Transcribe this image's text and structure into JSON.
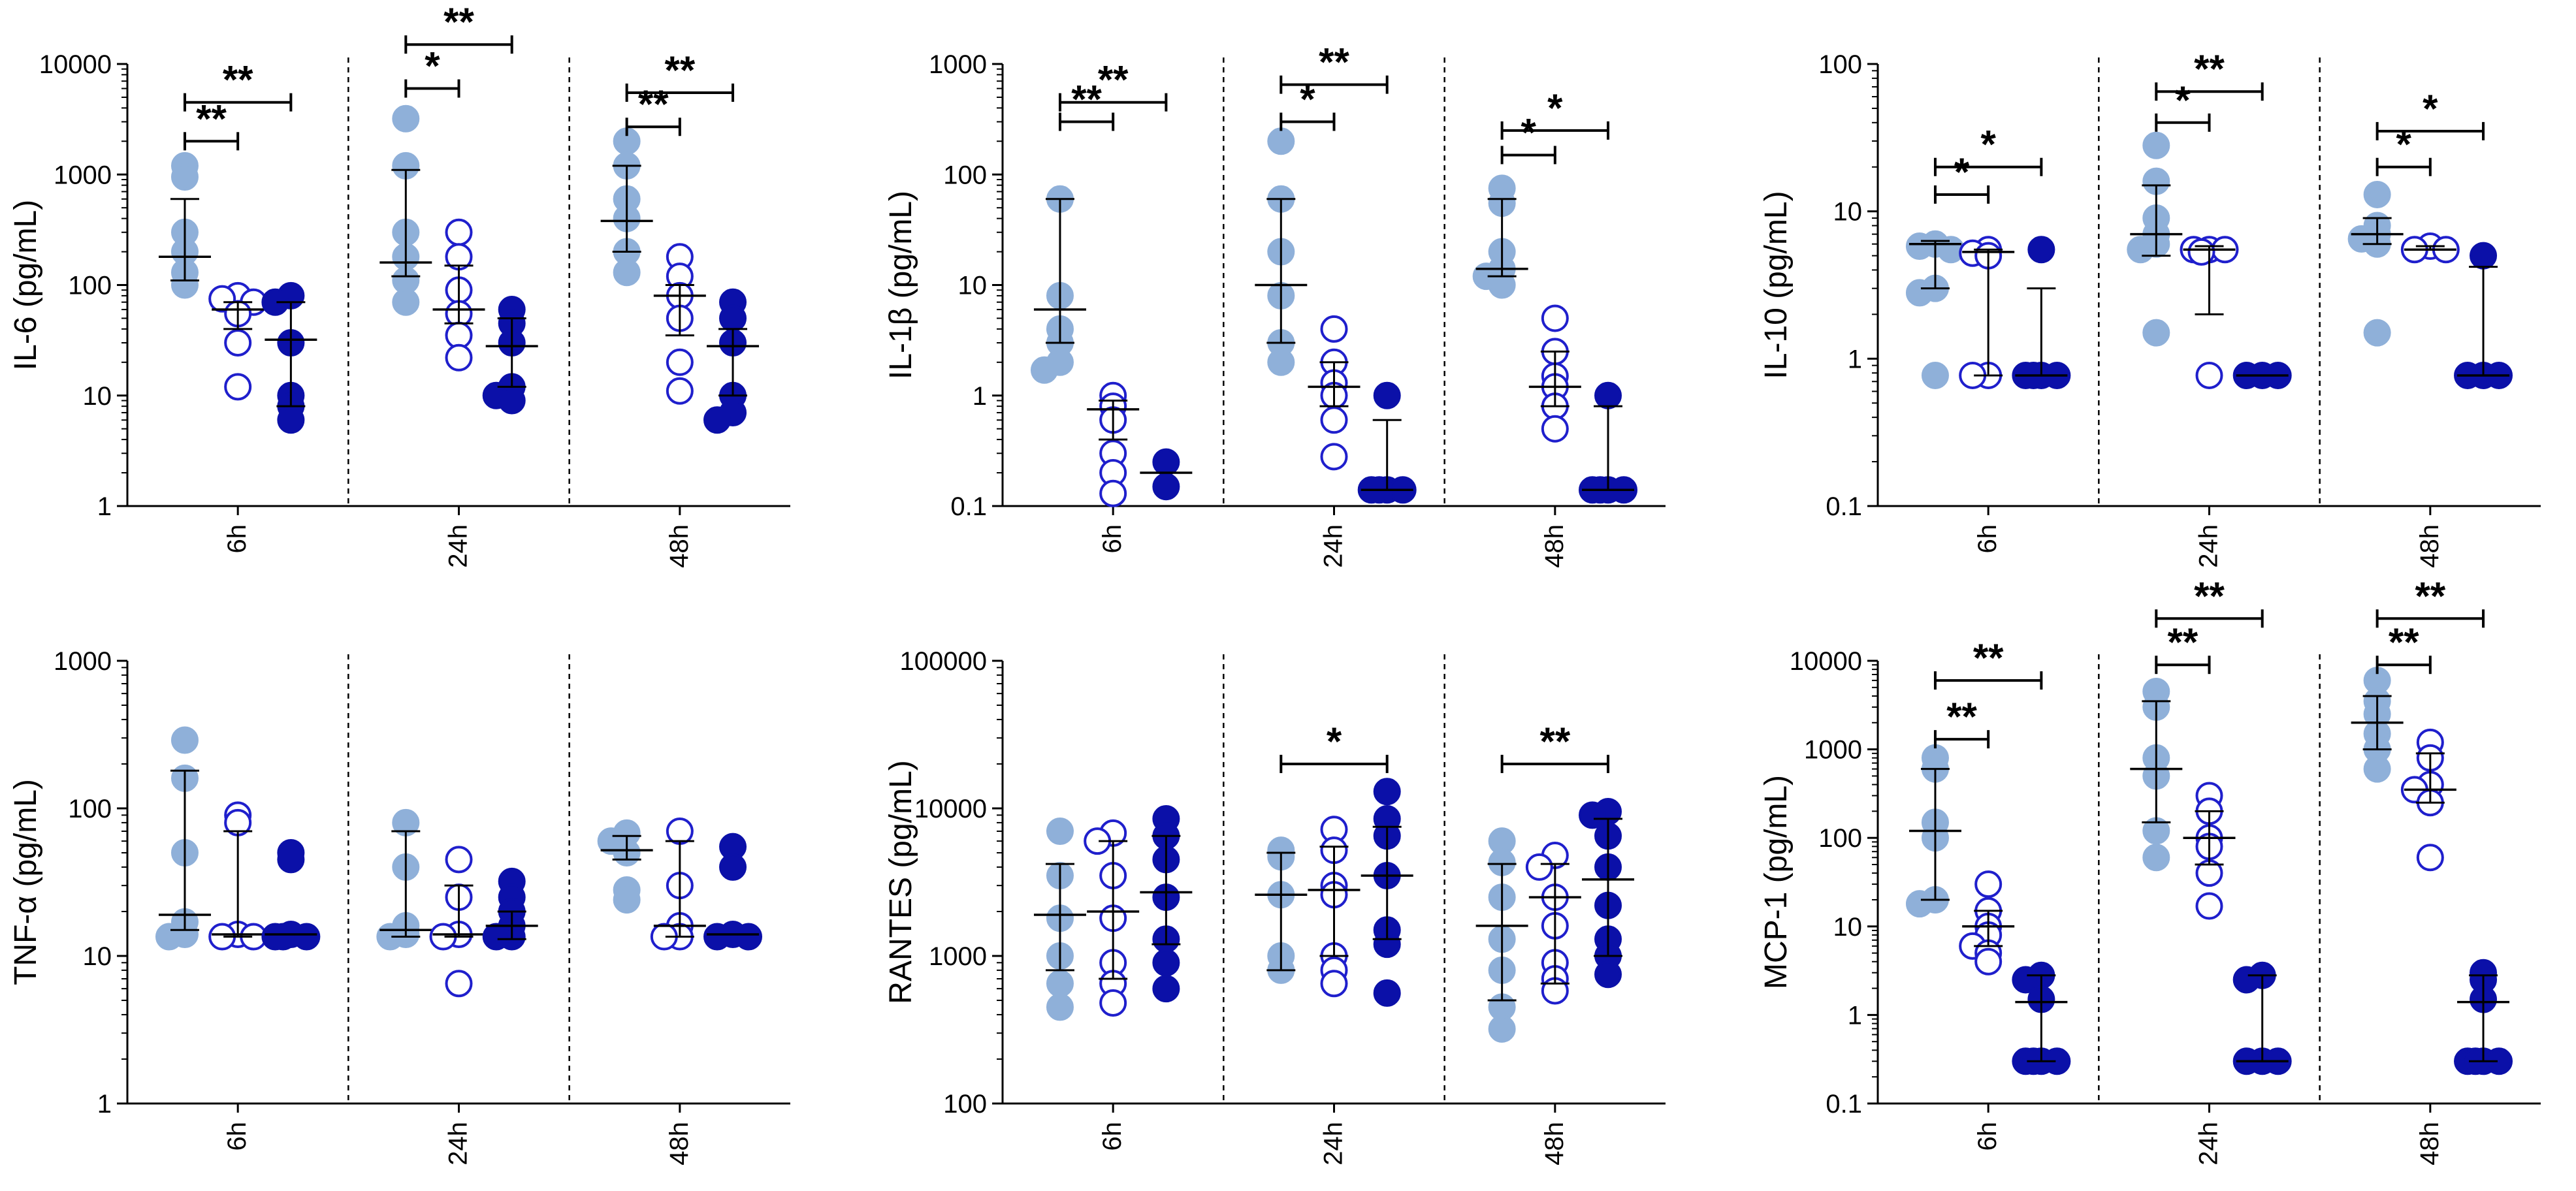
{
  "colors": {
    "light_filled": "#8fb0d9",
    "open_circle": "#1f1fcc",
    "dark_filled": "#0b10a8",
    "axis": "#000000"
  },
  "chart_data": [
    {
      "type": "scatter",
      "scale": "log",
      "ylabel": "IL-6 (pg/mL)",
      "ylim": [
        1,
        10000
      ],
      "y_tick_labels": [
        "1",
        "10",
        "100",
        "1000",
        "10000"
      ],
      "categories": [
        "6h",
        "24h",
        "48h"
      ],
      "groups": [
        {
          "medians": [
            180,
            60,
            32
          ],
          "error_bars": [
            [
              110,
              600
            ],
            [
              40,
              70
            ],
            [
              8,
              70
            ]
          ],
          "points": [
            [
              1200,
              950,
              300,
              200,
              130,
              100
            ],
            [
              80,
              75,
              70,
              55,
              30,
              12
            ],
            [
              80,
              70,
              30,
              10,
              8,
              6
            ]
          ]
        },
        {
          "medians": [
            160,
            60,
            28
          ],
          "error_bars": [
            [
              120,
              1100
            ],
            [
              45,
              150
            ],
            [
              12,
              50
            ]
          ],
          "points": [
            [
              3200,
              1200,
              300,
              180,
              110,
              70
            ],
            [
              300,
              180,
              90,
              55,
              35,
              22
            ],
            [
              60,
              45,
              30,
              12,
              10,
              9
            ]
          ]
        },
        {
          "medians": [
            380,
            80,
            28
          ],
          "error_bars": [
            [
              200,
              1200
            ],
            [
              35,
              100
            ],
            [
              10,
              40
            ]
          ],
          "points": [
            [
              2000,
              1200,
              600,
              400,
              200,
              130
            ],
            [
              180,
              120,
              80,
              50,
              20,
              11
            ],
            [
              70,
              50,
              30,
              10,
              7,
              6
            ]
          ]
        }
      ],
      "significance": [
        {
          "time": 0,
          "from": 0,
          "to": 1,
          "level": 2000,
          "label": "**"
        },
        {
          "time": 0,
          "from": 0,
          "to": 2,
          "level": 4500,
          "label": "**"
        },
        {
          "time": 1,
          "from": 0,
          "to": 1,
          "level": 6000,
          "label": "*"
        },
        {
          "time": 1,
          "from": 0,
          "to": 2,
          "level": 15000,
          "label": "**"
        },
        {
          "time": 2,
          "from": 0,
          "to": 1,
          "level": 2700,
          "label": "**"
        },
        {
          "time": 2,
          "from": 0,
          "to": 2,
          "level": 5500,
          "label": "**"
        }
      ]
    },
    {
      "type": "scatter",
      "scale": "log",
      "ylabel": "IL-1β (pg/mL)",
      "ylim": [
        0.1,
        1000
      ],
      "y_tick_labels": [
        "0.1",
        "1",
        "10",
        "100",
        "1000"
      ],
      "categories": [
        "6h",
        "24h",
        "48h"
      ],
      "groups": [
        {
          "medians": [
            6,
            0.75,
            0.2
          ],
          "error_bars": [
            [
              3,
              60
            ],
            [
              0.4,
              0.9
            ],
            null
          ],
          "points": [
            [
              60,
              8,
              4,
              3,
              2,
              1.7
            ],
            [
              1,
              0.8,
              0.6,
              0.3,
              0.2,
              0.13
            ],
            [
              0.25,
              0.15
            ]
          ]
        },
        {
          "medians": [
            10,
            1.2,
            0.14
          ],
          "error_bars": [
            [
              3,
              60
            ],
            [
              0.8,
              2
            ],
            [
              0.14,
              0.6
            ]
          ],
          "points": [
            [
              200,
              60,
              20,
              8,
              3,
              2
            ],
            [
              4,
              2,
              1.3,
              1,
              0.6,
              0.28
            ],
            [
              1,
              0.14,
              0.14,
              0.14,
              0.14
            ]
          ]
        },
        {
          "medians": [
            14,
            1.2,
            0.14
          ],
          "error_bars": [
            [
              12,
              60
            ],
            [
              0.8,
              2.5
            ],
            [
              0.14,
              0.8
            ]
          ],
          "points": [
            [
              75,
              55,
              20,
              14,
              12,
              10
            ],
            [
              5,
              2.5,
              1.5,
              1.2,
              0.8,
              0.5
            ],
            [
              1,
              0.14,
              0.14,
              0.14,
              0.14
            ]
          ]
        }
      ],
      "significance": [
        {
          "time": 0,
          "from": 0,
          "to": 1,
          "level": 300,
          "label": "**"
        },
        {
          "time": 0,
          "from": 0,
          "to": 2,
          "level": 450,
          "label": "**"
        },
        {
          "time": 1,
          "from": 0,
          "to": 1,
          "level": 300,
          "label": "*"
        },
        {
          "time": 1,
          "from": 0,
          "to": 2,
          "level": 650,
          "label": "**"
        },
        {
          "time": 2,
          "from": 0,
          "to": 1,
          "level": 150,
          "label": "*"
        },
        {
          "time": 2,
          "from": 0,
          "to": 2,
          "level": 250,
          "label": "*"
        }
      ]
    },
    {
      "type": "scatter",
      "scale": "log",
      "ylabel": "IL-10 (pg/mL)",
      "ylim": [
        0.1,
        100
      ],
      "y_tick_labels": [
        "0.1",
        "1",
        "10",
        "100"
      ],
      "categories": [
        "6h",
        "24h",
        "48h"
      ],
      "groups": [
        {
          "medians": [
            6,
            5.3,
            0.77
          ],
          "error_bars": [
            [
              3,
              6.3
            ],
            [
              0.77,
              5.5
            ],
            [
              0.77,
              3
            ]
          ],
          "points": [
            [
              6,
              5.8,
              5.5,
              3,
              2.8,
              0.77
            ],
            [
              5.5,
              5.2,
              5,
              0.77,
              0.77
            ],
            [
              5.5,
              0.77,
              0.77,
              0.77,
              0.77
            ]
          ]
        },
        {
          "medians": [
            7,
            5.5,
            0.77
          ],
          "error_bars": [
            [
              5,
              15
            ],
            [
              2,
              5.8
            ],
            null
          ],
          "points": [
            [
              28,
              16,
              9,
              7,
              6,
              5.5,
              1.5
            ],
            [
              5.5,
              5.5,
              5.5,
              5.3,
              0.77
            ],
            [
              0.77,
              0.77,
              0.77
            ]
          ]
        },
        {
          "medians": [
            7,
            5.5,
            0.77
          ],
          "error_bars": [
            [
              6,
              9
            ],
            [
              5.5,
              5.8
            ],
            [
              0.77,
              4.2
            ]
          ],
          "points": [
            [
              13,
              8,
              7,
              6.5,
              6,
              1.5
            ],
            [
              5.8,
              5.5,
              5.5
            ],
            [
              5,
              0.77,
              0.77,
              0.77
            ]
          ]
        }
      ],
      "significance": [
        {
          "time": 0,
          "from": 0,
          "to": 1,
          "level": 13,
          "label": "*"
        },
        {
          "time": 0,
          "from": 0,
          "to": 2,
          "level": 20,
          "label": "*"
        },
        {
          "time": 1,
          "from": 0,
          "to": 1,
          "level": 40,
          "label": "*"
        },
        {
          "time": 1,
          "from": 0,
          "to": 2,
          "level": 65,
          "label": "**"
        },
        {
          "time": 2,
          "from": 0,
          "to": 1,
          "level": 20,
          "label": "*"
        },
        {
          "time": 2,
          "from": 0,
          "to": 2,
          "level": 35,
          "label": "*"
        }
      ]
    },
    {
      "type": "scatter",
      "scale": "log",
      "ylabel": "TNF-α (pg/mL)",
      "ylim": [
        1,
        1000
      ],
      "y_tick_labels": [
        "1",
        "10",
        "100",
        "1000"
      ],
      "categories": [
        "6h",
        "24h",
        "48h"
      ],
      "groups": [
        {
          "medians": [
            19,
            14,
            14
          ],
          "error_bars": [
            [
              15,
              180
            ],
            [
              13.5,
              70
            ],
            null
          ],
          "points": [
            [
              290,
              160,
              50,
              17,
              14,
              13.5
            ],
            [
              90,
              80,
              14,
              13.5,
              13.5
            ],
            [
              50,
              45,
              14,
              13.5,
              13.5,
              13.5
            ]
          ]
        },
        {
          "medians": [
            15,
            14,
            16
          ],
          "error_bars": [
            [
              13.5,
              70
            ],
            [
              13.5,
              30
            ],
            [
              13,
              20
            ]
          ],
          "points": [
            [
              80,
              40,
              16,
              14,
              13.5
            ],
            [
              45,
              25,
              14,
              13.5,
              6.5
            ],
            [
              32,
              25,
              20,
              16,
              13.5,
              13.5
            ]
          ]
        },
        {
          "medians": [
            52,
            16,
            14
          ],
          "error_bars": [
            [
              45,
              65
            ],
            [
              13.5,
              60
            ],
            null
          ],
          "points": [
            [
              68,
              60,
              50,
              28,
              24
            ],
            [
              70,
              30,
              16,
              13.5,
              13.5
            ],
            [
              55,
              40,
              14,
              13.5,
              13.5
            ]
          ]
        }
      ],
      "significance": []
    },
    {
      "type": "scatter",
      "scale": "log",
      "ylabel": "RANTES (pg/mL)",
      "ylim": [
        100,
        100000
      ],
      "y_tick_labels": [
        "100",
        "1000",
        "10000",
        "100000"
      ],
      "categories": [
        "6h",
        "24h",
        "48h"
      ],
      "groups": [
        {
          "medians": [
            1900,
            2000,
            2700
          ],
          "error_bars": [
            [
              800,
              4200
            ],
            [
              700,
              6000
            ],
            [
              1200,
              6500
            ]
          ],
          "points": [
            [
              7000,
              3500,
              1800,
              1000,
              650,
              450
            ],
            [
              6800,
              6000,
              3500,
              1800,
              900,
              650,
              480
            ],
            [
              8500,
              6500,
              4500,
              2500,
              1300,
              900,
              600
            ]
          ]
        },
        {
          "medians": [
            2600,
            2800,
            3500
          ],
          "error_bars": [
            [
              800,
              5000
            ],
            [
              1000,
              5500
            ],
            [
              1300,
              7500
            ]
          ],
          "points": [
            [
              5200,
              4700,
              2600,
              1000,
              800
            ],
            [
              7200,
              5200,
              3000,
              2600,
              1000,
              800,
              650
            ],
            [
              13000,
              8500,
              6500,
              3500,
              1500,
              1200,
              560
            ]
          ]
        },
        {
          "medians": [
            1600,
            2500,
            3300
          ],
          "error_bars": [
            [
              500,
              4200
            ],
            [
              650,
              4200
            ],
            [
              1000,
              8500
            ]
          ],
          "points": [
            [
              6000,
              4300,
              2500,
              1300,
              800,
              450,
              320
            ],
            [
              4800,
              4000,
              2500,
              1600,
              900,
              700,
              580
            ],
            [
              9500,
              9000,
              6500,
              4000,
              2200,
              1300,
              1000,
              750
            ]
          ]
        }
      ],
      "significance": [
        {
          "time": 1,
          "from": 0,
          "to": 2,
          "level": 20000,
          "label": "*"
        },
        {
          "time": 2,
          "from": 0,
          "to": 2,
          "level": 20000,
          "label": "**"
        }
      ]
    },
    {
      "type": "scatter",
      "scale": "log",
      "ylabel": "MCP-1 (pg/mL)",
      "ylim": [
        0.1,
        10000
      ],
      "y_tick_labels": [
        "0.1",
        "1",
        "10",
        "100",
        "1000",
        "10000"
      ],
      "categories": [
        "6h",
        "24h",
        "48h"
      ],
      "groups": [
        {
          "medians": [
            120,
            10,
            1.4
          ],
          "error_bars": [
            [
              20,
              600
            ],
            [
              6,
              15
            ],
            [
              0.3,
              2.8
            ]
          ],
          "points": [
            [
              800,
              600,
              150,
              100,
              20,
              18
            ],
            [
              30,
              15,
              10,
              8,
              6,
              5,
              4
            ],
            [
              2.8,
              2.5,
              1.5,
              0.3,
              0.3,
              0.3,
              0.3
            ]
          ]
        },
        {
          "medians": [
            600,
            100,
            0.3
          ],
          "error_bars": [
            [
              150,
              3500
            ],
            [
              50,
              200
            ],
            [
              0.3,
              2.8
            ]
          ],
          "points": [
            [
              4500,
              3000,
              800,
              500,
              120,
              60
            ],
            [
              300,
              200,
              100,
              80,
              40,
              17
            ],
            [
              2.8,
              2.5,
              0.3,
              0.3,
              0.3
            ]
          ]
        },
        {
          "medians": [
            2000,
            350,
            1.4
          ],
          "error_bars": [
            [
              1000,
              4000
            ],
            [
              250,
              900
            ],
            [
              0.3,
              2.8
            ]
          ],
          "points": [
            [
              6000,
              3500,
              2500,
              1500,
              1000,
              600
            ],
            [
              1200,
              800,
              400,
              350,
              250,
              60
            ],
            [
              3,
              2.5,
              1.5,
              0.3,
              0.3,
              0.3,
              0.3
            ]
          ]
        }
      ],
      "significance": [
        {
          "time": 0,
          "from": 0,
          "to": 1,
          "level": 1300,
          "label": "**"
        },
        {
          "time": 0,
          "from": 0,
          "to": 2,
          "level": 6000,
          "label": "**"
        },
        {
          "time": 1,
          "from": 0,
          "to": 1,
          "level": 9000,
          "label": "**"
        },
        {
          "time": 1,
          "from": 0,
          "to": 2,
          "level": 30000,
          "label": "**"
        },
        {
          "time": 2,
          "from": 0,
          "to": 1,
          "level": 9000,
          "label": "**"
        },
        {
          "time": 2,
          "from": 0,
          "to": 2,
          "level": 30000,
          "label": "**"
        }
      ]
    }
  ]
}
